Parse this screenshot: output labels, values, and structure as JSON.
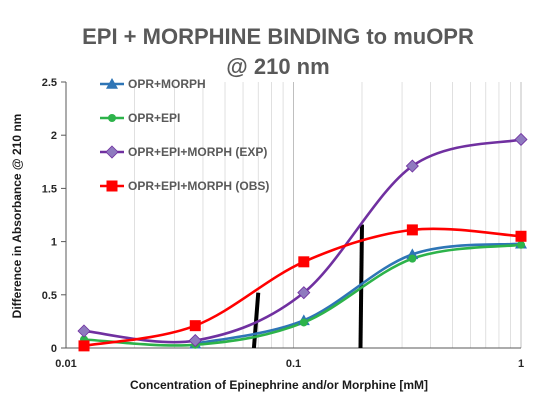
{
  "chart_data": {
    "type": "line",
    "title_line1": "EPI + MORPHINE BINDING to muOPR",
    "title_line2": "@ 210 nm",
    "xlabel": "Concentration of Epinephrine and/or Morphine [mM]",
    "ylabel": "Difference in Absorbance @ 210 nm",
    "x_scale": "log",
    "xlim": [
      0.01,
      1
    ],
    "ylim": [
      0,
      2.5
    ],
    "x_ticks": [
      0.01,
      0.1,
      1
    ],
    "x_tick_labels": [
      "0.01",
      "0.1",
      "1"
    ],
    "y_ticks": [
      0,
      0.5,
      1,
      1.5,
      2,
      2.5
    ],
    "y_tick_labels": [
      "0",
      "0.5",
      "1",
      "1.5",
      "2",
      "2.5"
    ],
    "grid": "vertical minor log gridlines",
    "legend_position": "top-left",
    "series": [
      {
        "name": "OPR+MORPH",
        "color": "#2E75B6",
        "marker": "triangle",
        "x": [
          0.037,
          0.111,
          0.333,
          1
        ],
        "y": [
          0.04,
          0.26,
          0.88,
          0.98
        ]
      },
      {
        "name": "OPR+EPI",
        "color": "#2DB34A",
        "marker": "circle",
        "x": [
          0.012,
          0.037,
          0.111,
          0.333,
          1
        ],
        "y": [
          0.08,
          0.03,
          0.24,
          0.84,
          0.97
        ]
      },
      {
        "name": "OPR+EPI+MORPH (EXP)",
        "color": "#7030A0",
        "marker_color": "#8F7ABF",
        "marker": "diamond",
        "x": [
          0.012,
          0.037,
          0.111,
          0.333,
          1
        ],
        "y": [
          0.16,
          0.07,
          0.52,
          1.71,
          1.96
        ]
      },
      {
        "name": "OPR+EPI+MORPH (OBS)",
        "color": "#FF0000",
        "marker": "square",
        "x": [
          0.012,
          0.037,
          0.111,
          0.333,
          1
        ],
        "y": [
          0.02,
          0.21,
          0.81,
          1.11,
          1.05
        ]
      }
    ],
    "annotations": [
      {
        "type": "vertical-bar",
        "x1": 0.067,
        "y1": 0.0,
        "x2": 0.07,
        "y2": 0.52,
        "color": "#000000"
      },
      {
        "type": "vertical-bar",
        "x1": 0.197,
        "y1": 0.0,
        "x2": 0.2,
        "y2": 1.16,
        "color": "#000000"
      }
    ]
  }
}
